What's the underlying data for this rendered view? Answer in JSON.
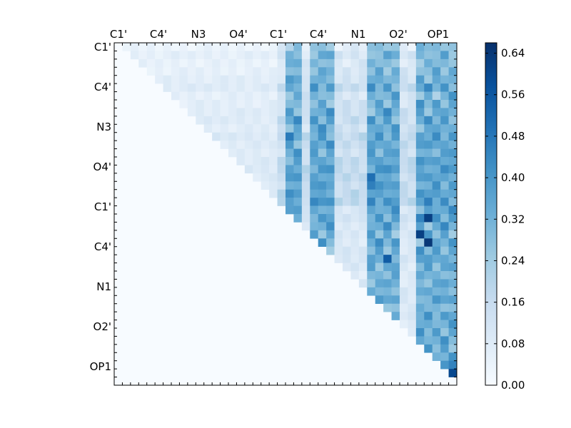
{
  "chart_data": {
    "type": "heatmap",
    "title": "",
    "xlabel": "",
    "ylabel": "",
    "grid_size": 42,
    "x_tick_labels": [
      "C1'",
      "C4'",
      "N3",
      "O4'",
      "C1'",
      "C4'",
      "N1",
      "O2'",
      "OP1"
    ],
    "y_tick_labels": [
      "C1'",
      "C4'",
      "N3",
      "O4'",
      "C1'",
      "C4'",
      "N1",
      "O2'",
      "OP1"
    ],
    "colormap": "Blues",
    "vmin": 0.0,
    "vmax": 0.66,
    "colorbar_ticks": [
      "0.00",
      "0.08",
      "0.16",
      "0.24",
      "0.32",
      "0.40",
      "0.48",
      "0.56",
      "0.64"
    ],
    "colorbar_tick_values": [
      0.0,
      0.08,
      0.16,
      0.24,
      0.32,
      0.4,
      0.48,
      0.56,
      0.64
    ],
    "structure": "upper-triangular matrix; values approximately estimated from colors",
    "row_bases": [
      0.06,
      0.1,
      0.08,
      0.09,
      0.12,
      0.14,
      0.1,
      0.11,
      0.13,
      0.14,
      0.12,
      0.16,
      0.14,
      0.13,
      0.15,
      0.16,
      0.15,
      0.14,
      0.16,
      0.17,
      0.14,
      0.15,
      0.13,
      0.12,
      0.12,
      0.13,
      0.14,
      0.12,
      0.1,
      0.11,
      0.12,
      0.13,
      0.1,
      0.14,
      0.12,
      0.13,
      0.12,
      0.14,
      0.13,
      0.14,
      0.15,
      0.1
    ],
    "hot_columns": [
      21,
      22,
      24,
      25,
      26,
      31,
      32,
      33,
      34,
      37,
      38,
      39,
      40,
      41
    ],
    "hot_boost": 0.14,
    "special_cells": [
      [
        40,
        41,
        0.6
      ],
      [
        39,
        40,
        0.4
      ],
      [
        39,
        41,
        0.45
      ],
      [
        38,
        39,
        0.32
      ],
      [
        24,
        38,
        0.64
      ],
      [
        21,
        38,
        0.62
      ],
      [
        23,
        37,
        0.62
      ],
      [
        26,
        33,
        0.55
      ],
      [
        16,
        31,
        0.5
      ],
      [
        17,
        31,
        0.46
      ]
    ]
  }
}
